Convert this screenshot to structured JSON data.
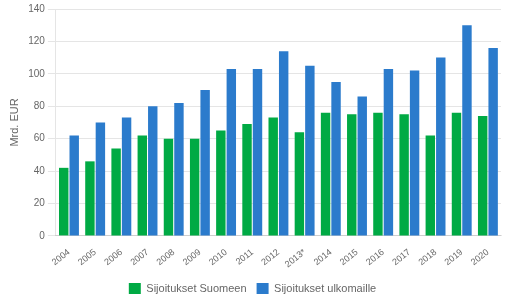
{
  "chart_data": {
    "type": "bar",
    "ylabel": "Mrd. EUR",
    "categories": [
      "2004",
      "2005",
      "2006",
      "2007",
      "2008",
      "2009",
      "2010",
      "2011",
      "2012",
      "2013*",
      "2014",
      "2015",
      "2016",
      "2017",
      "2018",
      "2019",
      "2020"
    ],
    "series": [
      {
        "name": "Sijoitukset Suomeen",
        "color": "#00AA44",
        "values": [
          42,
          46,
          54,
          62,
          60,
          60,
          65,
          69,
          73,
          64,
          76,
          75,
          76,
          75,
          62,
          76,
          74
        ]
      },
      {
        "name": "Sijoitukset ulkomaille",
        "color": "#2B7BCC",
        "values": [
          62,
          70,
          73,
          80,
          82,
          90,
          103,
          103,
          114,
          105,
          95,
          86,
          103,
          102,
          110,
          130,
          116
        ]
      }
    ],
    "ylim": [
      0,
      140
    ],
    "yticks": [
      0,
      20,
      40,
      60,
      80,
      100,
      120,
      140
    ],
    "grid": true,
    "legend": "bottom"
  }
}
